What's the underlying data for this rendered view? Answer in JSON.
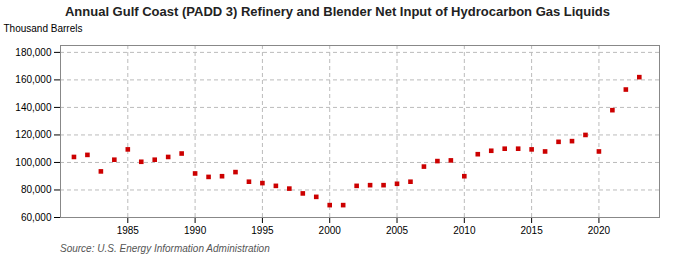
{
  "chart_data": {
    "type": "scatter",
    "title": "Annual Gulf Coast (PADD 3) Refinery and Blender Net Input of Hydrocarbon Gas Liquids",
    "ylabel": "Thousand Barrels",
    "source": "Source: U.S. Energy Information Administration",
    "x": [
      1981,
      1982,
      1983,
      1984,
      1985,
      1986,
      1987,
      1988,
      1989,
      1990,
      1991,
      1992,
      1993,
      1994,
      1995,
      1996,
      1997,
      1998,
      1999,
      2000,
      2001,
      2002,
      2003,
      2004,
      2005,
      2006,
      2007,
      2008,
      2009,
      2010,
      2011,
      2012,
      2013,
      2014,
      2015,
      2016,
      2017,
      2018,
      2019,
      2020,
      2021,
      2022,
      2023
    ],
    "values": [
      104000,
      105500,
      93500,
      102000,
      109500,
      100500,
      102000,
      104000,
      106500,
      92000,
      89500,
      90000,
      93000,
      86000,
      85000,
      83000,
      81000,
      77500,
      75000,
      69000,
      69000,
      83000,
      83500,
      83500,
      84500,
      86000,
      97000,
      101000,
      101500,
      90000,
      106000,
      108500,
      110000,
      110000,
      109500,
      108000,
      115000,
      115500,
      120000,
      108000,
      138000,
      153000,
      162000
    ],
    "color": "#cc0000",
    "marker": "square",
    "xlim": [
      1980,
      2024.5
    ],
    "xticks": [
      1985,
      1990,
      1995,
      2000,
      2005,
      2010,
      2015,
      2020
    ],
    "ylim": [
      60000,
      185000
    ],
    "yticks": [
      {
        "value": 60000,
        "label": "60,000"
      },
      {
        "value": 80000,
        "label": "80,000"
      },
      {
        "value": 100000,
        "label": "100,000"
      },
      {
        "value": 120000,
        "label": "120,000"
      },
      {
        "value": 140000,
        "label": "140,000"
      },
      {
        "value": 160000,
        "label": "160,000"
      },
      {
        "value": 180000,
        "label": "180,000"
      }
    ],
    "grid": true
  }
}
